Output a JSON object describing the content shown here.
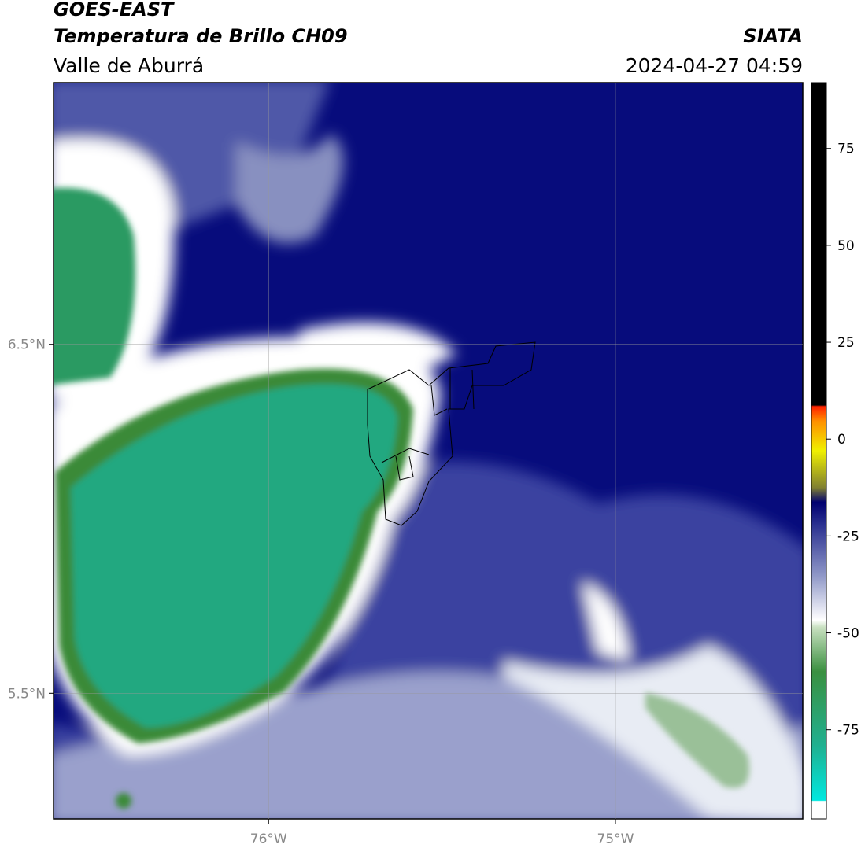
{
  "header": {
    "title": "GOES-EAST",
    "subtitle": "Temperatura de Brillo CH09",
    "region": "Valle de Aburrá",
    "source": "SIATA",
    "datetime": "2024-04-27 04:59"
  },
  "map": {
    "lon_range": [
      -76.62,
      -74.46
    ],
    "lat_range": [
      5.14,
      7.25
    ],
    "lon_ticks": [
      {
        "value": -76,
        "label": "76°W"
      },
      {
        "value": -75,
        "label": "75°W"
      }
    ],
    "lat_ticks": [
      {
        "value": 6.5,
        "label": "6.5°N"
      },
      {
        "value": 5.5,
        "label": "5.5°N"
      }
    ]
  },
  "colorbar": {
    "range": [
      -98,
      92
    ],
    "ticks": [
      75,
      50,
      25,
      0,
      -25,
      -50,
      -75
    ]
  }
}
